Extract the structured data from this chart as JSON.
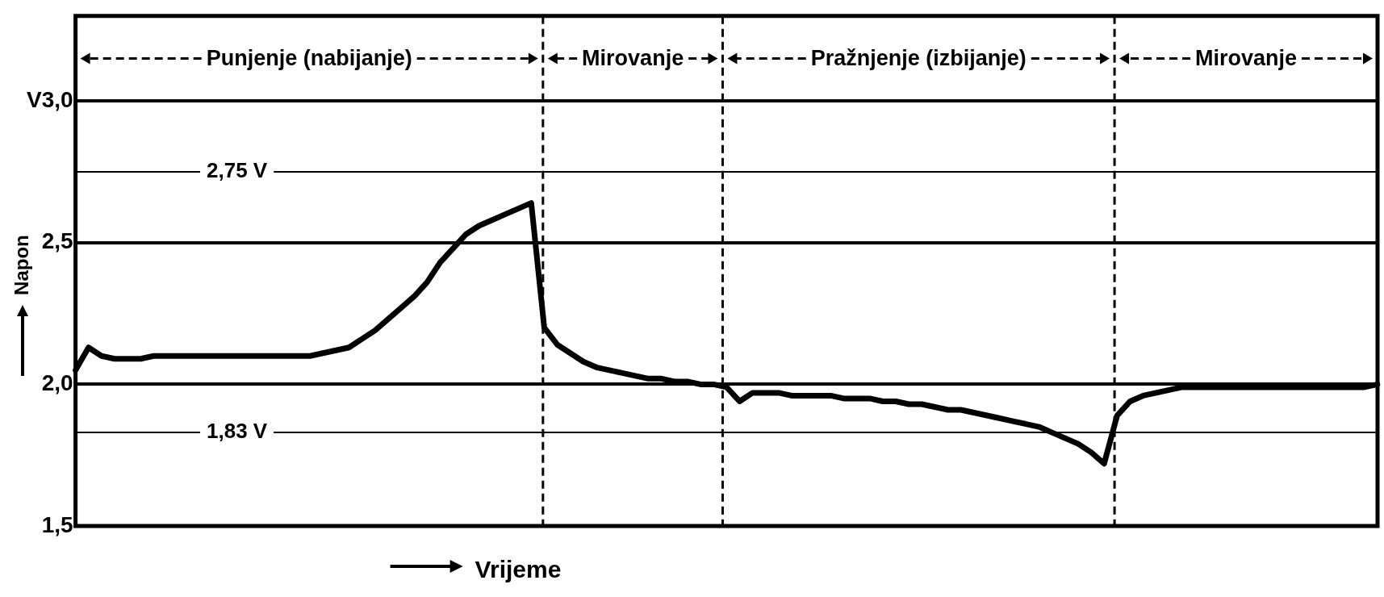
{
  "chart_data": {
    "type": "line",
    "xlabel": "Vrijeme",
    "ylabel": "Napon",
    "categories": [
      null,
      null,
      null,
      null,
      null,
      null,
      null,
      null,
      null,
      null,
      null,
      null,
      null,
      null,
      null,
      null,
      null,
      null,
      null,
      null,
      null,
      null,
      null,
      null,
      null,
      null,
      null,
      null,
      null,
      null,
      null,
      null,
      null,
      null,
      null,
      null,
      null,
      null,
      null,
      null,
      null,
      null,
      null,
      null,
      null,
      null,
      null,
      null,
      null,
      null,
      null,
      null,
      null,
      null,
      null,
      null,
      null,
      null,
      null,
      null,
      null,
      null,
      null,
      null,
      null,
      null,
      null,
      null,
      null,
      null,
      null,
      null,
      null,
      null,
      null,
      null,
      null,
      null,
      null,
      null,
      null,
      null,
      null,
      null,
      null,
      null,
      null,
      null,
      null,
      null,
      null,
      null,
      null,
      null,
      null,
      null,
      null,
      null,
      null,
      null,
      null
    ],
    "series": [
      {
        "color": "#000000",
        "values": [
          2.05,
          2.13,
          2.1,
          2.09,
          2.09,
          2.09,
          2.1,
          2.1,
          2.1,
          2.1,
          2.1,
          2.1,
          2.1,
          2.1,
          2.1,
          2.1,
          2.1,
          2.1,
          2.1,
          2.11,
          2.12,
          2.13,
          2.16,
          2.19,
          2.23,
          2.27,
          2.31,
          2.36,
          2.43,
          2.48,
          2.53,
          2.56,
          2.58,
          2.6,
          2.62,
          2.64,
          2.2,
          2.14,
          2.11,
          2.08,
          2.06,
          2.05,
          2.04,
          2.03,
          2.02,
          2.02,
          2.01,
          2.01,
          2.0,
          2.0,
          1.99,
          1.94,
          1.97,
          1.97,
          1.97,
          1.96,
          1.96,
          1.96,
          1.96,
          1.95,
          1.95,
          1.95,
          1.94,
          1.94,
          1.93,
          1.93,
          1.92,
          1.91,
          1.91,
          1.9,
          1.89,
          1.88,
          1.87,
          1.86,
          1.85,
          1.83,
          1.81,
          1.79,
          1.76,
          1.72,
          1.89,
          1.94,
          1.96,
          1.97,
          1.98,
          1.99,
          1.99,
          1.99,
          1.99,
          1.99,
          1.99,
          1.99,
          1.99,
          1.99,
          1.99,
          1.99,
          1.99,
          1.99,
          1.99,
          1.99,
          2.0
        ]
      }
    ],
    "ylim": [
      1.5,
      3.3
    ],
    "yticks": [
      {
        "value": 1.5,
        "label": "1,5"
      },
      {
        "value": 2,
        "label": "2,0"
      },
      {
        "value": 2.5,
        "label": "2,5"
      },
      {
        "value": 3,
        "label": "V3,0"
      }
    ],
    "tick_labels": "y",
    "grid": "y",
    "legend": false,
    "marker": "none",
    "line_style": "solid",
    "ref_lines": [
      {
        "axis": "y",
        "value": 2.75,
        "label": "2,75 V",
        "color": "#000000",
        "line_style": "solid"
      },
      {
        "axis": "y",
        "value": 1.83,
        "label": "1,83 V",
        "color": "#000000",
        "line_style": "solid"
      }
    ],
    "annotations": [
      "Punjenje (nabijanje)",
      "Mirovanje",
      "Pražnjenje (izbijanje)",
      "Mirovanje"
    ]
  }
}
